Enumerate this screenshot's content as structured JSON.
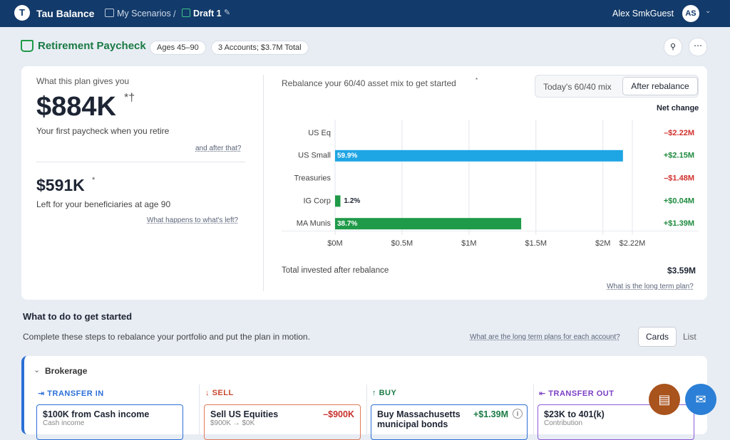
{
  "nav": {
    "logo": "T",
    "brand": "Tau Balance",
    "scenarios": "My Scenarios",
    "sep": "/",
    "draft": "Draft 1",
    "user": "Alex SmkGuest",
    "initials": "AS"
  },
  "header": {
    "title": "Retirement Paycheck",
    "badges": [
      "Ages 45–90",
      "3 Accounts; $3.7M Total"
    ]
  },
  "summary": {
    "label": "What this plan gives you",
    "amount": "$884K",
    "amount_mark": "*†",
    "amount_caption": "Your first paycheck when you retire",
    "link1": "and after that?",
    "legacy": "$591K",
    "legacy_mark": "*",
    "legacy_caption": "Left for your beneficiaries at age 90",
    "link2": "What happens to what's left?"
  },
  "chart_panel": {
    "title": "Rebalance your 60/40 asset mix to get started",
    "title_mark": "*",
    "toggle": [
      "Today's 60/40 mix",
      "After rebalance"
    ],
    "net_change_header": "Net change",
    "net_changes": [
      "–$2.22M",
      "+$2.15M",
      "–$1.48M",
      "+$0.04M",
      "+$1.39M"
    ],
    "share_labels": [
      null,
      "59.9%",
      null,
      "1.2%",
      "38.7%"
    ],
    "total_label": "Total invested after rebalance",
    "total": "$3.59M",
    "link": "What is the long term plan?"
  },
  "chart_data": {
    "type": "bar",
    "orientation": "horizontal",
    "categories": [
      "US Eq",
      "US Small",
      "Treasuries",
      "IG Corp",
      "MA Munis"
    ],
    "values": [
      0,
      2.15,
      0,
      0.04,
      1.39
    ],
    "colors": [
      "#1ea5e4",
      "#1ea5e4",
      "#1f9a48",
      "#1f9a48",
      "#1f9a48"
    ],
    "xlim": [
      0,
      2.22
    ],
    "xticks": [
      {
        "value": 0,
        "label": "$0M"
      },
      {
        "value": 0.5,
        "label": "$0.5M"
      },
      {
        "value": 1,
        "label": "$1M"
      },
      {
        "value": 1.5,
        "label": "$1.5M"
      },
      {
        "value": 2,
        "label": "$2M"
      },
      {
        "value": 2.22,
        "label": "$2.22M"
      }
    ],
    "grid": true
  },
  "steps": {
    "title": "What to do to get started",
    "description": "Complete these steps to rebalance your portfolio and put the plan in motion.",
    "link": "What are the long term plans for each account?",
    "views": [
      "Cards",
      "List"
    ],
    "account": "Brokerage",
    "columns": [
      {
        "heading": "TRANSFER IN",
        "card_title": "$100K from Cash income",
        "card_sub": "Cash income"
      },
      {
        "heading": "SELL",
        "card_title": "Sell US Equities",
        "card_amount": "–$900K",
        "card_sub": "$900K → $0K"
      },
      {
        "heading": "BUY",
        "card_title": "Buy Massachusetts municipal bonds",
        "card_amount": "+$1.39M"
      },
      {
        "heading": "TRANSFER OUT",
        "card_title": "$23K to 401(k)",
        "card_sub": "Contribution"
      }
    ]
  }
}
